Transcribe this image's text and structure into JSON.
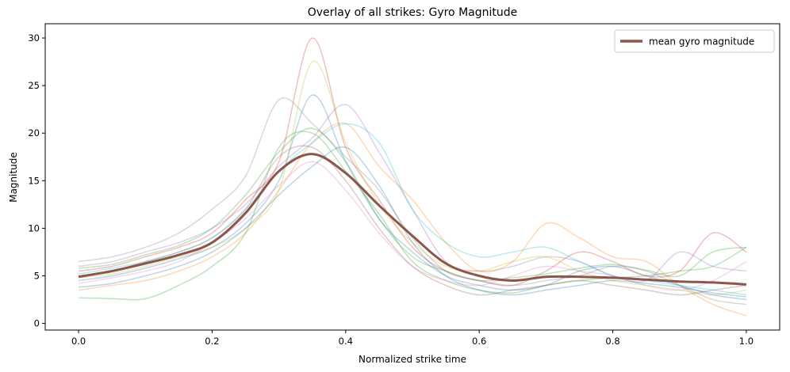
{
  "chart_data": {
    "type": "line",
    "title": "Overlay of all strikes: Gyro Magnitude",
    "xlabel": "Normalized strike time",
    "ylabel": "Magnitude",
    "xlim": [
      -0.05,
      1.05
    ],
    "ylim": [
      -0.7,
      31.5
    ],
    "xticks": [
      "0.0",
      "0.2",
      "0.4",
      "0.6",
      "0.8",
      "1.0"
    ],
    "yticks": [
      "0",
      "5",
      "10",
      "15",
      "20",
      "25",
      "30"
    ],
    "grid": false,
    "legend": {
      "placement": "top-right",
      "entries": [
        "mean gyro magnitude"
      ]
    },
    "x": [
      0,
      0.05,
      0.1,
      0.15,
      0.2,
      0.25,
      0.3,
      0.35,
      0.4,
      0.45,
      0.5,
      0.55,
      0.6,
      0.65,
      0.7,
      0.75,
      0.8,
      0.85,
      0.9,
      0.95,
      1.0
    ],
    "mean": {
      "name": "mean gyro magnitude",
      "color": "#8c564b",
      "values": [
        4.9,
        5.5,
        6.3,
        7.2,
        8.5,
        11.6,
        16.0,
        17.8,
        15.8,
        12.4,
        9.2,
        6.3,
        5.0,
        4.5,
        4.9,
        4.9,
        4.8,
        4.6,
        4.4,
        4.3,
        4.1
      ]
    },
    "strike_alpha": 0.3,
    "strikes": [
      {
        "color": "#1f77b4",
        "values": [
          4.5,
          5.0,
          5.8,
          6.8,
          8.0,
          10.5,
          15.0,
          24.0,
          17.0,
          11.0,
          7.5,
          5.0,
          4.0,
          3.5,
          4.0,
          5.5,
          6.0,
          5.0,
          4.0,
          3.0,
          2.5
        ]
      },
      {
        "color": "#ff7f0e",
        "values": [
          3.5,
          4.0,
          4.5,
          5.5,
          7.0,
          9.5,
          14.0,
          19.0,
          21.0,
          16.5,
          13.0,
          8.5,
          5.5,
          6.5,
          10.5,
          9.0,
          7.0,
          6.5,
          4.0,
          2.0,
          0.8
        ]
      },
      {
        "color": "#2ca02c",
        "values": [
          2.7,
          2.6,
          2.6,
          4.0,
          6.0,
          9.5,
          18.5,
          20.0,
          16.0,
          11.5,
          6.5,
          4.5,
          3.5,
          3.2,
          4.0,
          4.5,
          4.8,
          5.0,
          5.5,
          6.0,
          8.0
        ]
      },
      {
        "color": "#d62728",
        "values": [
          5.5,
          6.0,
          7.0,
          8.0,
          9.5,
          13.0,
          17.0,
          30.0,
          18.5,
          13.0,
          8.0,
          5.5,
          4.5,
          4.0,
          5.5,
          7.5,
          6.5,
          5.0,
          5.5,
          9.5,
          7.5
        ]
      },
      {
        "color": "#9467bd",
        "values": [
          6.0,
          6.5,
          7.5,
          8.5,
          10.0,
          12.5,
          16.5,
          19.5,
          23.0,
          18.0,
          12.0,
          6.5,
          5.5,
          6.0,
          7.0,
          6.5,
          5.0,
          4.5,
          7.5,
          6.0,
          5.5
        ]
      },
      {
        "color": "#8c564b",
        "values": [
          5.0,
          5.5,
          6.5,
          7.5,
          9.0,
          12.0,
          17.5,
          18.5,
          15.0,
          10.0,
          6.0,
          4.0,
          3.0,
          3.5,
          4.0,
          4.5,
          4.0,
          3.5,
          3.0,
          3.5,
          4.0
        ]
      },
      {
        "color": "#e377c2",
        "values": [
          4.2,
          4.8,
          5.5,
          6.5,
          8.5,
          11.0,
          14.5,
          17.0,
          14.0,
          9.5,
          6.0,
          4.5,
          4.0,
          5.0,
          6.0,
          5.5,
          5.0,
          4.0,
          3.5,
          4.5,
          6.5
        ]
      },
      {
        "color": "#7f7f7f",
        "values": [
          6.5,
          7.0,
          8.0,
          9.5,
          12.0,
          15.5,
          23.5,
          21.0,
          17.5,
          14.0,
          9.0,
          5.5,
          4.5,
          4.0,
          4.5,
          5.0,
          6.0,
          5.5,
          4.0,
          2.5,
          2.0
        ]
      },
      {
        "color": "#bcbd22",
        "values": [
          4.8,
          5.2,
          6.0,
          7.0,
          8.0,
          10.0,
          14.0,
          27.5,
          19.0,
          12.5,
          8.5,
          6.0,
          5.5,
          6.5,
          7.0,
          5.5,
          4.5,
          4.0,
          3.5,
          3.0,
          3.5
        ]
      },
      {
        "color": "#17becf",
        "values": [
          5.2,
          5.8,
          6.5,
          7.5,
          9.0,
          12.0,
          16.0,
          19.0,
          21.0,
          19.0,
          12.0,
          8.5,
          7.0,
          7.5,
          8.0,
          6.5,
          5.0,
          4.5,
          4.0,
          3.5,
          3.0
        ]
      },
      {
        "color": "#1f77b4",
        "values": [
          3.8,
          4.2,
          5.0,
          6.0,
          7.5,
          10.0,
          13.5,
          16.5,
          18.5,
          14.5,
          8.5,
          5.0,
          3.5,
          3.0,
          3.5,
          4.0,
          4.5,
          4.2,
          3.8,
          3.2,
          2.8
        ]
      },
      {
        "color": "#2ca02c",
        "values": [
          5.8,
          6.2,
          7.2,
          8.2,
          10.0,
          13.5,
          18.0,
          20.5,
          17.0,
          11.0,
          7.0,
          5.5,
          4.5,
          4.8,
          5.2,
          5.8,
          6.2,
          5.6,
          5.0,
          7.5,
          8.0
        ]
      }
    ]
  }
}
